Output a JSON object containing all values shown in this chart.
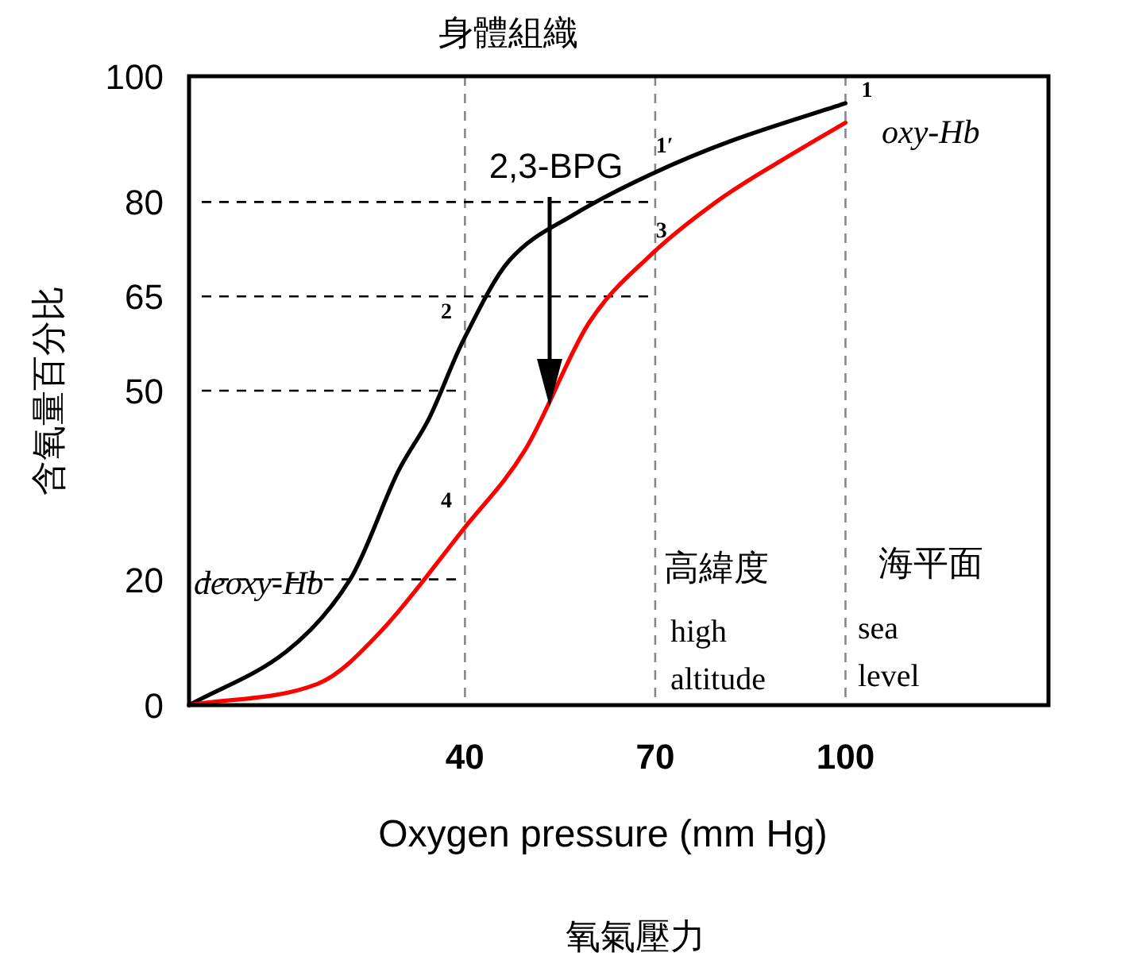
{
  "chart_data": {
    "type": "line",
    "title": "身體組織",
    "xlabel": "Oxygen pressure (mm Hg)",
    "ylabel": "含氧量百分比",
    "xlim": [
      -3.5,
      132
    ],
    "xticks": [
      40,
      70,
      100
    ],
    "ylim": [
      0,
      100
    ],
    "yticks": [
      0,
      20,
      50,
      65,
      80,
      100
    ],
    "series": [
      {
        "color": "#000000",
        "x": [
          -3.5,
          11.8,
          21.9,
          29.4,
          34.4,
          39.7,
          47,
          57,
          69.1,
          82.2,
          100
        ],
        "values": [
          0,
          8.5,
          20,
          37,
          45.7,
          57.9,
          70.7,
          77.9,
          84.3,
          89.8,
          95.7
        ]
      },
      {
        "color": "#ff0000",
        "x": [
          -3.5,
          16.8,
          26.9,
          39.7,
          49.5,
          59.5,
          69.1,
          79.6,
          89.7,
          100
        ],
        "values": [
          0,
          3.4,
          11.9,
          27.9,
          40.6,
          60.7,
          71.4,
          80,
          86.5,
          92.6
        ]
      }
    ],
    "ref_lines": [
      {
        "axis": "x",
        "value": 40,
        "color": "#888888",
        "line_style": "dashed"
      },
      {
        "axis": "x",
        "value": 70,
        "color": "#888888",
        "line_style": "dashed"
      },
      {
        "axis": "x",
        "value": 100,
        "color": "#888888",
        "line_style": "dashed"
      },
      {
        "axis": "y",
        "value": 80,
        "color": "#000000",
        "line_style": "dashed"
      },
      {
        "axis": "y",
        "value": 65,
        "color": "#000000",
        "line_style": "dashed"
      },
      {
        "axis": "y",
        "value": 50,
        "color": "#000000",
        "line_style": "dashed"
      },
      {
        "axis": "y",
        "value": 20,
        "color": "#000000",
        "line_style": "dashed"
      }
    ],
    "annotations": [
      "2,3-BPG",
      {
        "text": "1",
        "x": 100,
        "y": 95.7
      },
      {
        "text": "1′",
        "x": 69.1,
        "y": 84.3
      },
      {
        "text": "2",
        "x": 39.7,
        "y": 57.9
      },
      {
        "text": "3",
        "x": 69.1,
        "y": 71.4
      },
      {
        "text": "4",
        "x": 39.7,
        "y": 27.9
      },
      "oxy-Hb",
      "deoxy-Hb",
      "高緯度",
      "high altitude",
      "海平面",
      "sea level",
      "氧氣壓力"
    ],
    "marker": "none",
    "line_style": "solid"
  }
}
